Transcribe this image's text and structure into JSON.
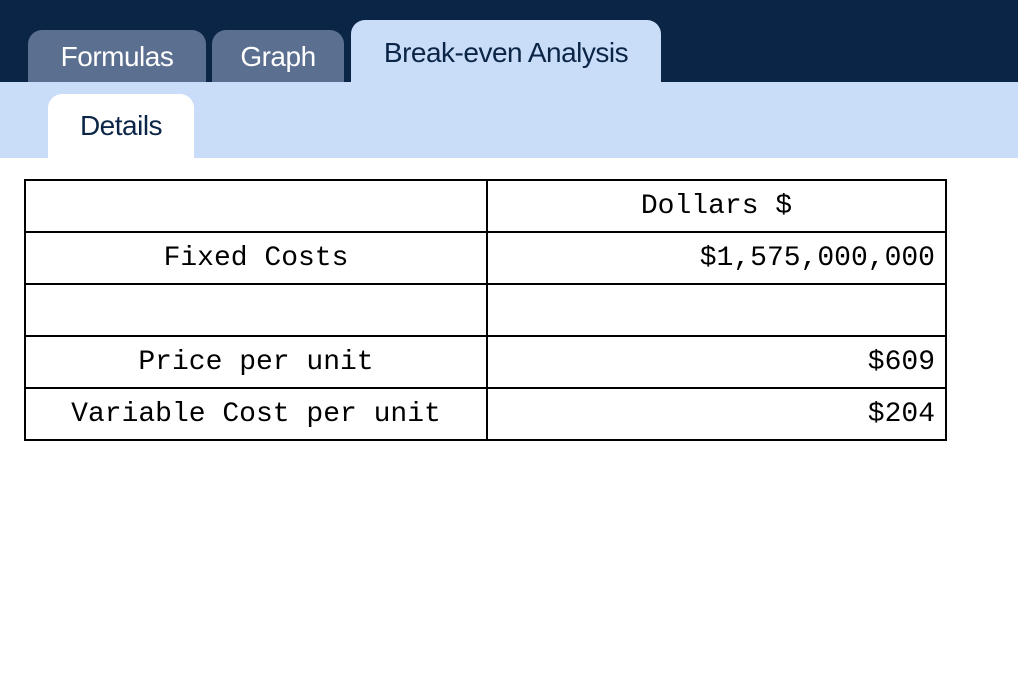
{
  "tabs": {
    "items": [
      "Formulas",
      "Graph",
      "Break-even Analysis"
    ],
    "active": 2
  },
  "subtabs": {
    "items": [
      "Details"
    ]
  },
  "table": {
    "header": "Dollars $",
    "rows": [
      [
        "Fixed Costs",
        "$1,575,000,000"
      ],
      null,
      [
        "Price per unit",
        "$609"
      ],
      [
        "Variable Cost per unit",
        "$204"
      ]
    ]
  }
}
